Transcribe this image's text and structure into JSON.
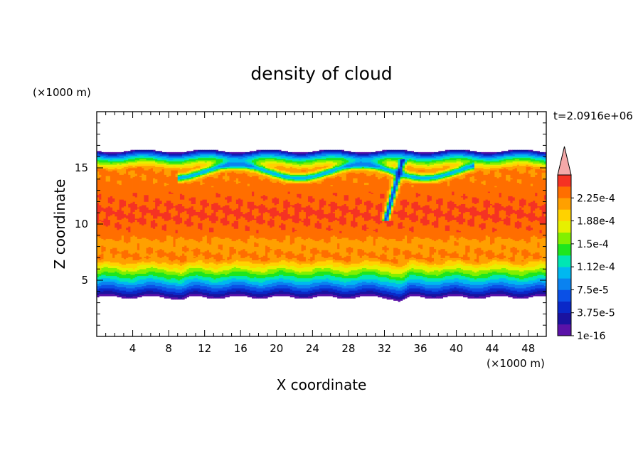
{
  "chart_data": {
    "type": "heatmap",
    "title": "density of cloud",
    "xlabel": "X coordinate",
    "ylabel": "Z coordinate",
    "x_unit": "(×1000 m)",
    "y_unit": "(×1000 m)",
    "time_label": "t=2.0916e+06",
    "xlim": [
      0,
      50
    ],
    "ylim": [
      0,
      20
    ],
    "x_ticks": [
      4,
      8,
      12,
      16,
      20,
      24,
      28,
      32,
      36,
      40,
      44,
      48
    ],
    "y_ticks": [
      5,
      10,
      15
    ],
    "grid": false,
    "colorbar": {
      "labels": [
        "2.25e-4",
        "1.88e-4",
        "1.5e-4",
        "1.12e-4",
        "7.5e-5",
        "3.75e-5",
        "1e-16"
      ],
      "levels": [
        1e-16,
        1.875e-05,
        3.75e-05,
        5.625e-05,
        7.5e-05,
        9.375e-05,
        0.0001125,
        0.00013125,
        0.00015,
        0.00016875,
        0.0001875,
        0.00020625,
        0.000225,
        0.00024375
      ],
      "colors": [
        "#5a12a8",
        "#1a12a0",
        "#0a28c8",
        "#0a50e6",
        "#0a82f0",
        "#00b8f0",
        "#00e6b4",
        "#1ee61e",
        "#82f000",
        "#e6f000",
        "#ffd200",
        "#ffa000",
        "#ff6e00",
        "#f53223"
      ],
      "overflow_color": "#f4a8a8"
    },
    "field_summary": {
      "cloud_base_km": 3.5,
      "cloud_top_km": 16.5,
      "core_value": 0.00024
    }
  }
}
